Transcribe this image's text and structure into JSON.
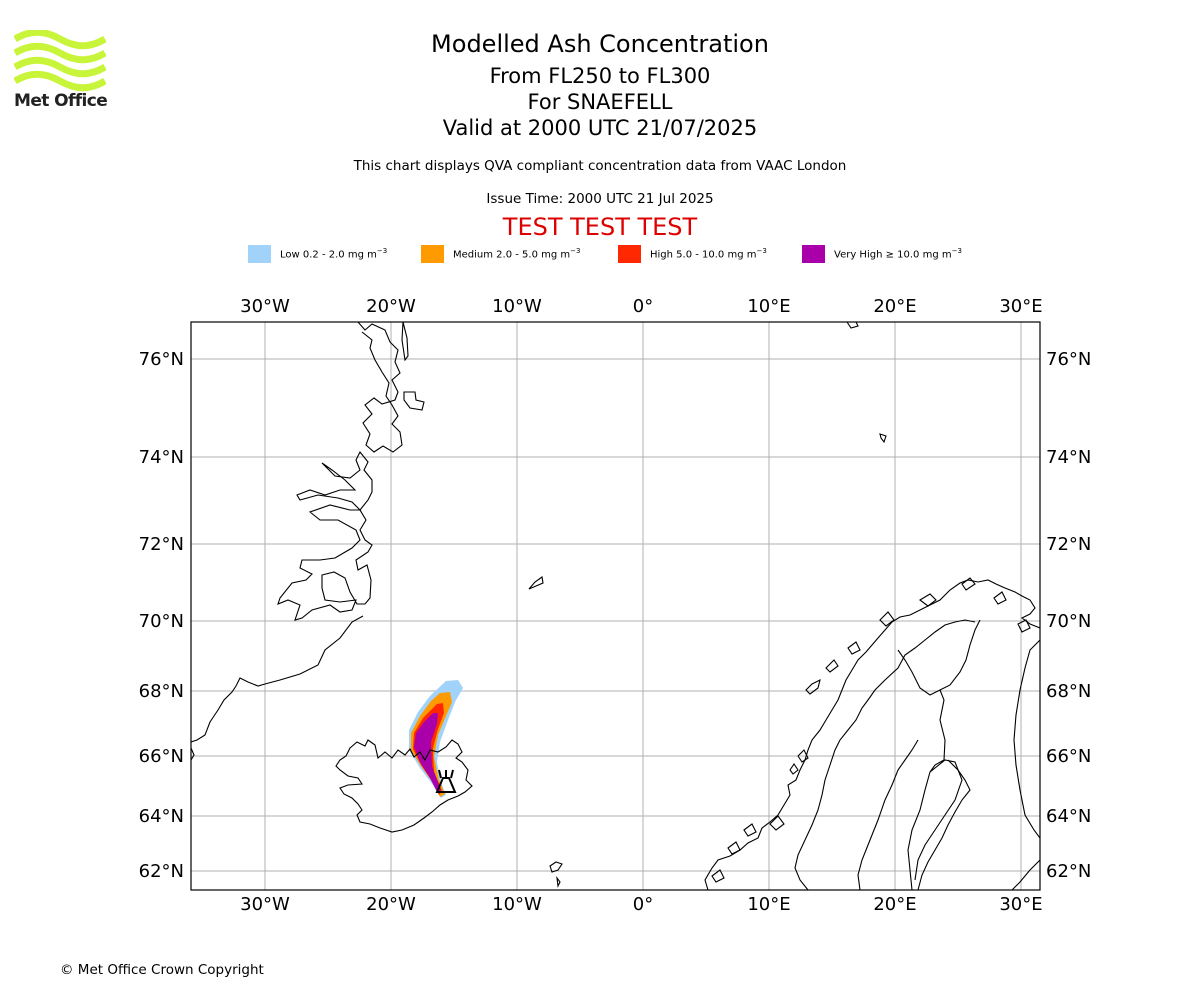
{
  "brand": {
    "name": "Met Office",
    "logo_color": "#c8f53a"
  },
  "header": {
    "title": "Modelled Ash Concentration",
    "levels": "From FL250 to FL300",
    "volcano": "For SNAEFELL",
    "valid": "Valid at 2000 UTC 21/07/2025",
    "subtitle": "This chart displays QVA compliant concentration data from VAAC London",
    "issue_time": "Issue Time: 2000 UTC 21 Jul 2025",
    "test_banner": "TEST TEST TEST"
  },
  "legend": [
    {
      "name": "low",
      "label": "Low 0.2 - 2.0 mg m",
      "color": "#a0d2fa"
    },
    {
      "name": "medium",
      "label": "Medium 2.0 - 5.0 mg m",
      "color": "#ff9a00"
    },
    {
      "name": "high",
      "label": "High 5.0 - 10.0 mg m",
      "color": "#ff2800"
    },
    {
      "name": "very-high",
      "label": "Very High ≥ 10.0 mg m",
      "color": "#aa00aa"
    }
  ],
  "legend_unit_exp": "−3",
  "map": {
    "lon_labels": [
      "30°W",
      "20°W",
      "10°W",
      "0°",
      "10°E",
      "20°E",
      "30°E"
    ],
    "lat_labels": [
      "76°N",
      "74°N",
      "72°N",
      "70°N",
      "68°N",
      "66°N",
      "64°N",
      "62°N"
    ],
    "lon_range": [
      "36°W",
      "31°E"
    ],
    "lat_range": [
      "61.5°N",
      "77°N"
    ],
    "gridlines": true,
    "volcano_marker": "volcano-icon"
  },
  "footer": {
    "copyright": "© Met Office Crown Copyright"
  }
}
